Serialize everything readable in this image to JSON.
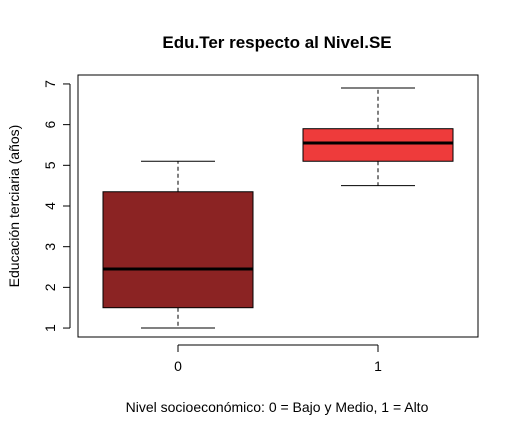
{
  "chart_data": {
    "type": "box",
    "title": "Edu.Ter respecto al Nivel.SE",
    "xlabel": "Nivel socioeconómico: 0 = Bajo y Medio, 1 = Alto",
    "ylabel": "Educación terciaria (años)",
    "ylim": [
      0.78,
      7.22
    ],
    "y_ticks": [
      1,
      2,
      3,
      4,
      5,
      6,
      7
    ],
    "categories": [
      "0",
      "1"
    ],
    "boxes": [
      {
        "category": "0",
        "whisker_low": 1.0,
        "q1": 1.5,
        "median": 2.45,
        "q3": 4.35,
        "whisker_high": 5.1,
        "color": "#8B2323"
      },
      {
        "category": "1",
        "whisker_low": 4.5,
        "q1": 5.1,
        "median": 5.55,
        "q3": 5.9,
        "whisker_high": 6.9,
        "color": "#EE3B3B"
      }
    ],
    "legend": "none",
    "grid": false
  }
}
